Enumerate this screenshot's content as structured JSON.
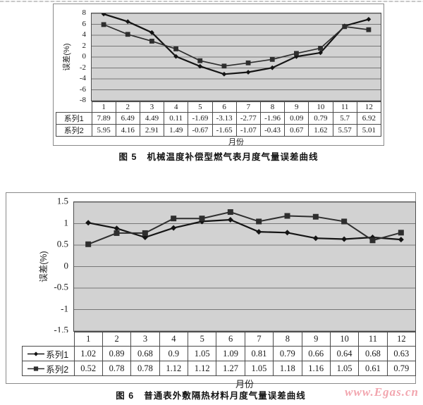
{
  "figures": [
    {
      "id": "fig5",
      "caption_label": "图 5",
      "caption_text": "机械温度补偿型燃气表月度气量误差曲线"
    },
    {
      "id": "fig6",
      "caption_label": "图 6",
      "caption_text": "普通表外敷隔热材料月度气量误差曲线"
    }
  ],
  "watermark": {
    "text": "www.Egas.cn",
    "color": "#f2a6af"
  },
  "chart_data": [
    {
      "id": "fig5",
      "type": "line",
      "title": "图 5 机械温度补偿型燃气表月度气量误差曲线",
      "xlabel": "月份",
      "ylabel": "误差(%)",
      "ylim": [
        -8,
        8
      ],
      "y_ticks": [
        8,
        6,
        4,
        2,
        0,
        -2,
        -4,
        -6,
        -8
      ],
      "categories": [
        1,
        2,
        3,
        4,
        5,
        6,
        7,
        8,
        9,
        10,
        11,
        12
      ],
      "series": [
        {
          "name": "系列1",
          "marker": "diamond",
          "color": "#141414",
          "line_width": 2.2,
          "values": [
            7.89,
            6.49,
            4.49,
            0.11,
            -1.69,
            -3.13,
            -2.77,
            -1.96,
            0.09,
            0.79,
            5.7,
            6.92
          ]
        },
        {
          "name": "系列2",
          "marker": "square",
          "color": "#2e2e2e",
          "line_width": 1.7,
          "values": [
            5.95,
            4.16,
            2.91,
            1.49,
            -0.67,
            -1.65,
            -1.07,
            -0.43,
            0.67,
            1.62,
            5.57,
            5.01
          ]
        }
      ],
      "grid": "horizontal",
      "legend_position": "table",
      "legend_in_table": false,
      "plot_bg": "#d2d2d2",
      "marker_size": 3.4
    },
    {
      "id": "fig6",
      "type": "line",
      "title": "图 6 普通表外敷隔热材料月度气量误差曲线",
      "xlabel": "月份",
      "ylabel": "误差(%)",
      "ylim": [
        -1.5,
        1.5
      ],
      "y_ticks": [
        1.5,
        1,
        0.5,
        0,
        -0.5,
        -1,
        -1.5
      ],
      "categories": [
        1,
        2,
        3,
        4,
        5,
        6,
        7,
        8,
        9,
        10,
        11,
        12
      ],
      "series": [
        {
          "name": "系列1",
          "marker": "diamond",
          "color": "#141414",
          "line_width": 2.2,
          "values": [
            1.02,
            0.89,
            0.68,
            0.9,
            1.05,
            1.09,
            0.81,
            0.79,
            0.66,
            0.64,
            0.68,
            0.63
          ]
        },
        {
          "name": "系列2",
          "marker": "square",
          "color": "#2e2e2e",
          "line_width": 2,
          "values": [
            0.52,
            0.78,
            0.78,
            1.12,
            1.12,
            1.27,
            1.05,
            1.18,
            1.16,
            1.05,
            0.61,
            0.79
          ]
        }
      ],
      "grid": "horizontal",
      "legend_position": "table",
      "legend_in_table": true,
      "plot_bg": "#d2d2d2",
      "marker_size": 4
    }
  ]
}
